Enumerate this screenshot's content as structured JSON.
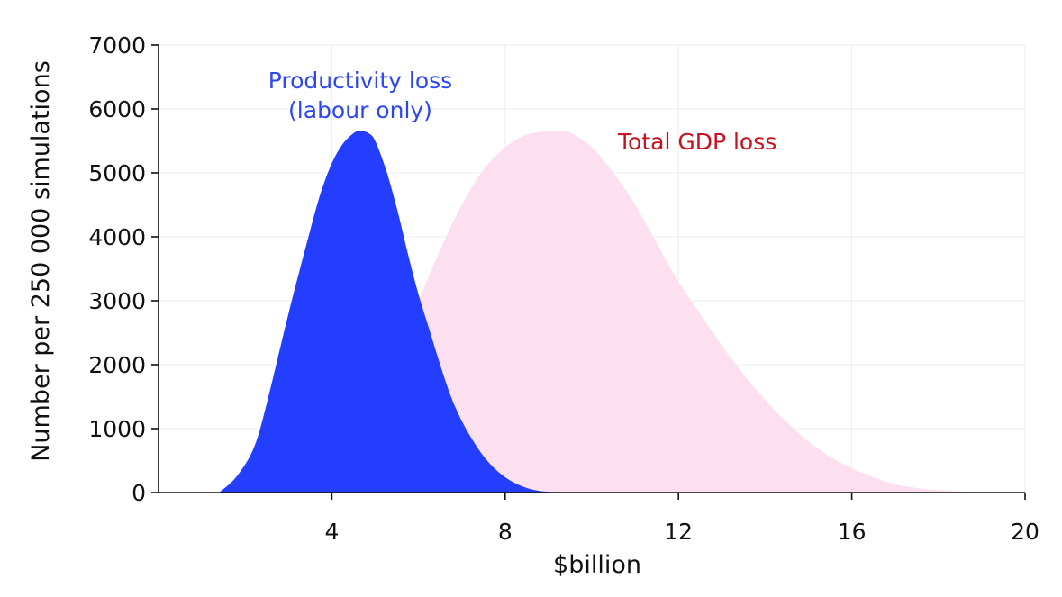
{
  "chart_data": {
    "type": "area",
    "title": "",
    "xlabel": "$billion",
    "ylabel": "Number per 250 000 simulations",
    "xlim": [
      0,
      20
    ],
    "ylim": [
      0,
      7000
    ],
    "x_ticks": [
      4,
      8,
      12,
      16,
      20
    ],
    "y_ticks": [
      0,
      1000,
      2000,
      3000,
      4000,
      5000,
      6000,
      7000
    ],
    "grid": true,
    "legend": "none",
    "series": [
      {
        "name": "Total GDP loss",
        "color": "#fde0f0",
        "x": [
          2.8,
          3.5,
          4.0,
          5.0,
          5.5,
          6.0,
          6.5,
          7.0,
          7.5,
          8.0,
          8.5,
          9.0,
          9.25,
          9.5,
          10.0,
          10.5,
          11.0,
          11.5,
          12.0,
          12.5,
          13.0,
          13.5,
          14.0,
          14.5,
          15.0,
          15.5,
          16.0,
          16.5,
          17.0,
          17.5,
          18.0,
          18.5,
          19.0,
          19.5
        ],
        "y": [
          0,
          300,
          520,
          1400,
          2200,
          3000,
          3800,
          4500,
          5050,
          5400,
          5600,
          5650,
          5660,
          5630,
          5400,
          5000,
          4500,
          3900,
          3300,
          2800,
          2300,
          1850,
          1450,
          1100,
          800,
          560,
          380,
          240,
          130,
          70,
          40,
          15,
          5,
          0
        ]
      },
      {
        "name": "Productivity loss (labour only)",
        "color": "#1f3aff",
        "x": [
          1.4,
          1.8,
          2.2,
          2.5,
          3.0,
          3.5,
          3.75,
          4.0,
          4.25,
          4.5,
          4.65,
          4.85,
          5.0,
          5.25,
          5.5,
          5.75,
          6.0,
          6.25,
          6.5,
          6.75,
          7.0,
          7.25,
          7.5,
          7.75,
          8.0,
          8.25,
          8.5,
          8.75,
          9.0,
          9.25,
          9.5
        ],
        "y": [
          0,
          250,
          700,
          1400,
          2800,
          4100,
          4700,
          5150,
          5450,
          5620,
          5660,
          5620,
          5500,
          5050,
          4450,
          3750,
          3100,
          2550,
          2000,
          1500,
          1120,
          820,
          570,
          380,
          240,
          140,
          70,
          30,
          10,
          5,
          0
        ]
      }
    ],
    "annotations": [
      {
        "lines": [
          "Productivity loss",
          "(labour only)"
        ],
        "color": "#2c46f2",
        "series": "Productivity loss (labour only)"
      },
      {
        "lines": [
          "Total GDP loss"
        ],
        "color": "#c8101e",
        "series": "Total GDP loss"
      }
    ]
  }
}
